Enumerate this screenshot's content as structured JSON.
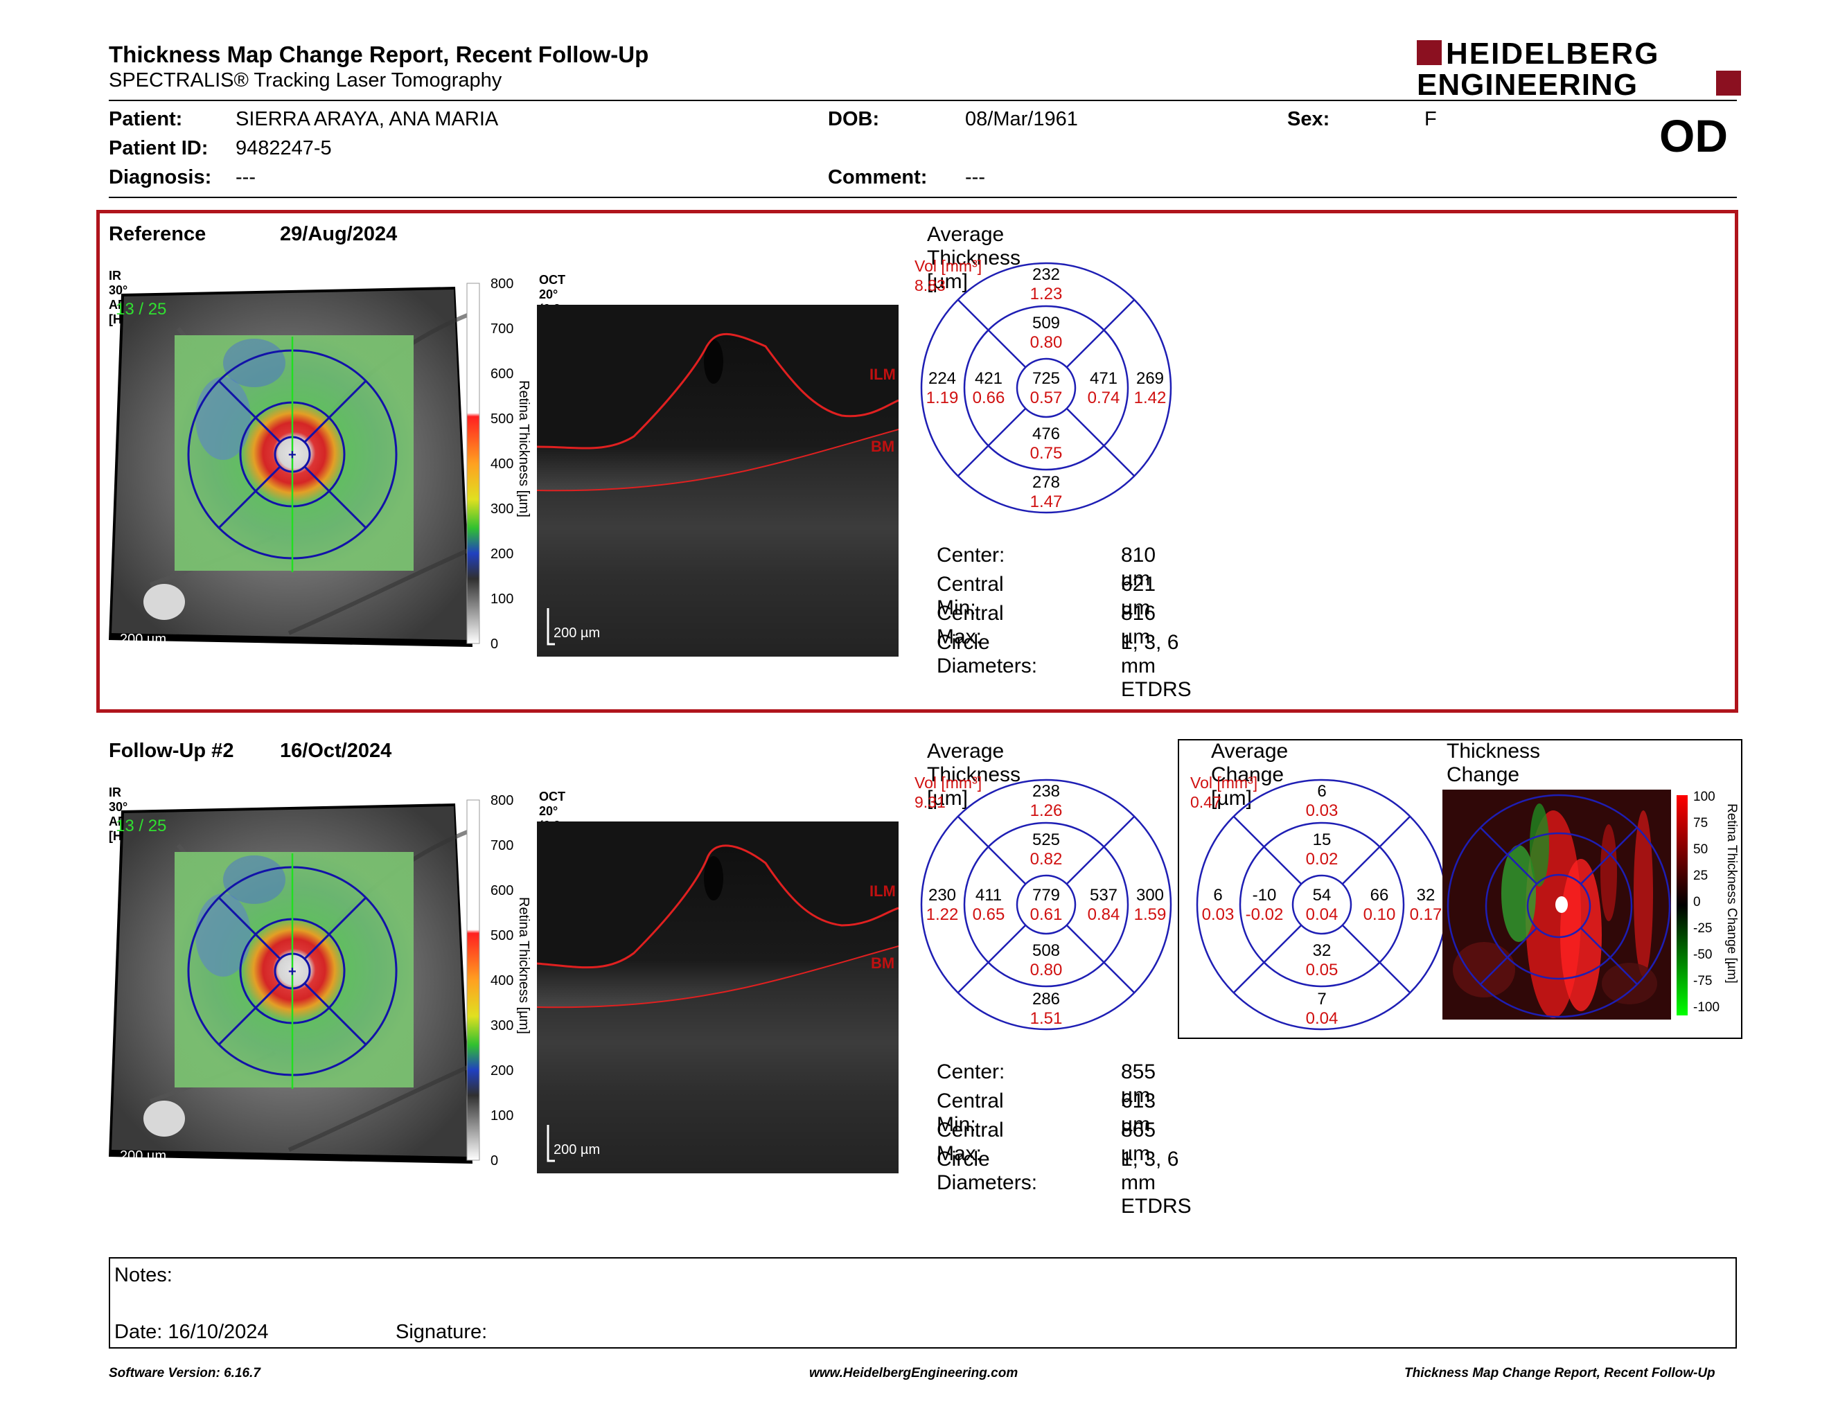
{
  "header": {
    "title": "Thickness Map Change Report, Recent Follow-Up",
    "subtitle": "SPECTRALIS® Tracking Laser Tomography",
    "logo_line1": "HEIDELBERG",
    "logo_line2": "ENGINEERING",
    "eye": "OD"
  },
  "patient": {
    "patient_label": "Patient:",
    "patient_value": "SIERRA ARAYA, ANA MARIA",
    "id_label": "Patient ID:",
    "id_value": "9482247-5",
    "diagnosis_label": "Diagnosis:",
    "diagnosis_value": "---",
    "dob_label": "DOB:",
    "dob_value": "08/Mar/1961",
    "comment_label": "Comment:",
    "comment_value": "---",
    "sex_label": "Sex:",
    "sex_value": "F"
  },
  "reference": {
    "label": "Reference",
    "date": "29/Aug/2024",
    "ir_label": "IR 30° ART [HS]",
    "ir_counter": "13 / 25",
    "oct_label": "OCT 20° (6.9 mm) ART (61) Q: 29 [HS]",
    "scale_fundus": "200 µm",
    "scale_oct": "200 µm",
    "avg_title": "Average Thickness [µm]",
    "vol_label": "Vol [mm³]",
    "vol_value": "8.83",
    "etdrs": {
      "outer_sup": [
        "232",
        "1.23"
      ],
      "inner_sup": [
        "509",
        "0.80"
      ],
      "outer_temp": [
        "224",
        "1.19"
      ],
      "inner_temp": [
        "421",
        "0.66"
      ],
      "center": [
        "725",
        "0.57"
      ],
      "inner_nasal": [
        "471",
        "0.74"
      ],
      "outer_nasal": [
        "269",
        "1.42"
      ],
      "inner_inf": [
        "476",
        "0.75"
      ],
      "outer_inf": [
        "278",
        "1.47"
      ]
    },
    "stats": {
      "center_label": "Center:",
      "center": "810 µm",
      "min_label": "Central Min:",
      "min": "621 µm",
      "max_label": "Central Max:",
      "max": "816 µm",
      "diam_label": "Circle Diameters:",
      "diam": "1, 3, 6 mm ETDRS"
    }
  },
  "followup": {
    "label": "Follow-Up #2",
    "date": "16/Oct/2024",
    "ir_label": "IR 30° ART [HS]",
    "ir_counter": "13 / 25",
    "oct_label": "OCT 20° (6.9 mm) ART (59) Q: 24 [HS]",
    "scale_fundus": "200 µm",
    "scale_oct": "200 µm",
    "avg_title": "Average Thickness [µm]",
    "vol_label": "Vol [mm³]",
    "vol_value": "9.31",
    "etdrs": {
      "outer_sup": [
        "238",
        "1.26"
      ],
      "inner_sup": [
        "525",
        "0.82"
      ],
      "outer_temp": [
        "230",
        "1.22"
      ],
      "inner_temp": [
        "411",
        "0.65"
      ],
      "center": [
        "779",
        "0.61"
      ],
      "inner_nasal": [
        "537",
        "0.84"
      ],
      "outer_nasal": [
        "300",
        "1.59"
      ],
      "inner_inf": [
        "508",
        "0.80"
      ],
      "outer_inf": [
        "286",
        "1.51"
      ]
    },
    "stats": {
      "center_label": "Center:",
      "center": "855 µm",
      "min_label": "Central Min:",
      "min": "613 µm",
      "max_label": "Central Max:",
      "max": "865 µm",
      "diam_label": "Circle Diameters:",
      "diam": "1, 3, 6 mm ETDRS"
    },
    "change_title": "Average Change [µm]",
    "change_vol_label": "Vol [mm³]",
    "change_vol_value": "0.47",
    "change": {
      "outer_sup": [
        "6",
        "0.03"
      ],
      "inner_sup": [
        "15",
        "0.02"
      ],
      "outer_temp": [
        "6",
        "0.03"
      ],
      "inner_temp": [
        "-10",
        "-0.02"
      ],
      "center": [
        "54",
        "0.04"
      ],
      "inner_nasal": [
        "66",
        "0.10"
      ],
      "outer_nasal": [
        "32",
        "0.17"
      ],
      "inner_inf": [
        "32",
        "0.05"
      ],
      "outer_inf": [
        "7",
        "0.04"
      ]
    },
    "thickness_change_title": "Thickness Change [µm]",
    "change_scale_title": "Retina Thickness Change [µm]",
    "change_scale_ticks": [
      "100",
      "75",
      "50",
      "25",
      "0",
      "-25",
      "-50",
      "-75",
      "-100"
    ]
  },
  "thickness_scale": {
    "title": "Retina Thickness [µm]",
    "ticks": [
      "800",
      "700",
      "600",
      "500",
      "400",
      "300",
      "200",
      "100",
      "0"
    ]
  },
  "oct_layers": {
    "ilm": "ILM",
    "bm": "BM"
  },
  "notes": {
    "notes_label": "Notes:",
    "date_label": "Date: 16/10/2024",
    "signature_label": "Signature:"
  },
  "footer": {
    "software": "Software Version: 6.16.7",
    "website": "www.HeidelbergEngineering.com",
    "report": "Thickness Map Change Report, Recent Follow-Up"
  },
  "colors": {
    "accent_red": "#b0141c",
    "etdrs_blue": "#1e1eb4",
    "value_red": "#d01010"
  }
}
